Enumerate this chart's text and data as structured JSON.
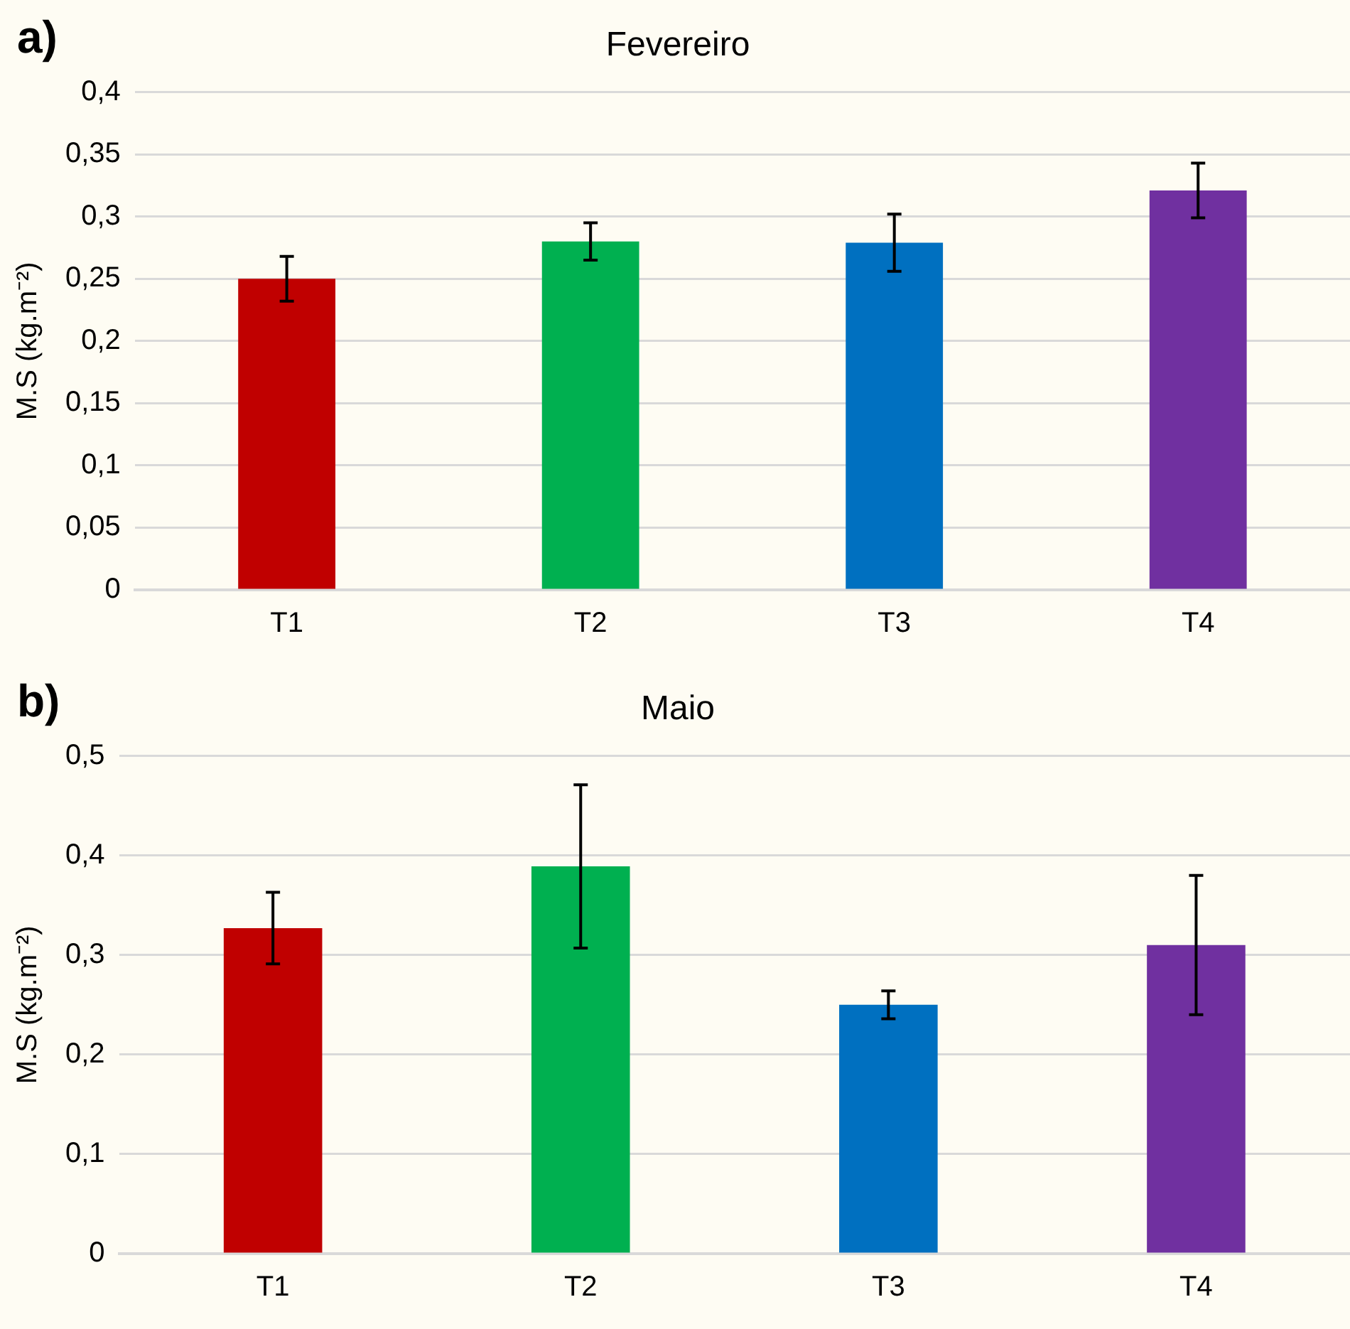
{
  "chart_data": [
    {
      "type": "bar",
      "title": "Fevereiro",
      "ylabel": "M.S (kg.m⁻²)",
      "annotations": [
        "a)"
      ],
      "categories": [
        "T1",
        "T2",
        "T3",
        "T4"
      ],
      "values": [
        0.25,
        0.28,
        0.279,
        0.321
      ],
      "errors": [
        0.018,
        0.015,
        0.023,
        0.022
      ],
      "colors": [
        "#c00000",
        "#00b050",
        "#0070c0",
        "#7030a0"
      ],
      "ylim": [
        0,
        0.4
      ],
      "yticks": [
        {
          "value": 0,
          "label": "0"
        },
        {
          "value": 0.05,
          "label": "0,05"
        },
        {
          "value": 0.1,
          "label": "0,1"
        },
        {
          "value": 0.15,
          "label": "0,15"
        },
        {
          "value": 0.2,
          "label": "0,2"
        },
        {
          "value": 0.25,
          "label": "0,25"
        },
        {
          "value": 0.3,
          "label": "0,3"
        },
        {
          "value": 0.35,
          "label": "0,35"
        },
        {
          "value": 0.4,
          "label": "0,4"
        }
      ],
      "grid": "y",
      "legend": false
    },
    {
      "type": "bar",
      "title": "Maio",
      "ylabel": "M.S (kg.m⁻²)",
      "annotations": [
        "b)"
      ],
      "categories": [
        "T1",
        "T2",
        "T3",
        "T4"
      ],
      "values": [
        0.327,
        0.389,
        0.25,
        0.31
      ],
      "errors": [
        0.036,
        0.082,
        0.014,
        0.07
      ],
      "colors": [
        "#c00000",
        "#00b050",
        "#0070c0",
        "#7030a0"
      ],
      "ylim": [
        0,
        0.5
      ],
      "yticks": [
        {
          "value": 0,
          "label": "0"
        },
        {
          "value": 0.1,
          "label": "0,1"
        },
        {
          "value": 0.2,
          "label": "0,2"
        },
        {
          "value": 0.3,
          "label": "0,3"
        },
        {
          "value": 0.4,
          "label": "0,4"
        },
        {
          "value": 0.5,
          "label": "0,5"
        }
      ],
      "grid": "y",
      "legend": false
    }
  ]
}
